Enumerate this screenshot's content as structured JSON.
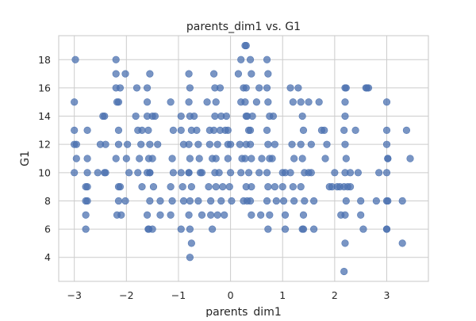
{
  "chart_data": {
    "type": "scatter",
    "title": "parents_dim1 vs. G1",
    "xlabel": "parents_dim1",
    "ylabel": "G1",
    "xlim": [
      -3.3,
      3.8
    ],
    "ylim": [
      2.3,
      19.7
    ],
    "xticks": [
      -3,
      -2,
      -1,
      0,
      1,
      2,
      3
    ],
    "yticks": [
      4,
      6,
      8,
      10,
      12,
      14,
      16,
      18
    ],
    "grid": true,
    "marker_color": "#4c72b0",
    "series": [
      {
        "x": [
          -2.98,
          -3.0,
          -3.0,
          -3.0,
          -2.96,
          -2.96,
          -3.0,
          -2.75,
          -2.75,
          -2.75,
          -2.75,
          -2.75,
          -2.78,
          -2.78,
          -2.78,
          -2.78,
          -2.55,
          -2.5,
          -2.45,
          -2.42,
          -2.4,
          -2.4,
          -2.42,
          -2.2,
          -2.2,
          -2.2,
          -2.15,
          -2.12,
          -2.18,
          -2.15,
          -2.2,
          -2.12,
          -2.15,
          -2.15,
          -2.18,
          -2.1,
          -2.15,
          -2.02,
          -1.98,
          -2.0,
          -2.02,
          -1.95,
          -1.8,
          -1.82,
          -1.78,
          -1.7,
          -1.72,
          -1.75,
          -1.78,
          -1.7,
          -1.6,
          -1.55,
          -1.6,
          -1.6,
          -1.58,
          -1.55,
          -1.57,
          -1.55,
          -1.6,
          -1.55,
          -1.6,
          -1.57,
          -1.58,
          -1.55,
          -1.5,
          -1.45,
          -1.4,
          -1.5,
          -1.48,
          -1.35,
          -1.35,
          -1.5,
          -1.15,
          -1.1,
          -1.12,
          -1.1,
          -1.15,
          -1.12,
          -1.15,
          -0.95,
          -0.95,
          -0.9,
          -0.95,
          -0.92,
          -0.9,
          -0.95,
          -0.8,
          -0.78,
          -0.8,
          -0.78,
          -0.75,
          -0.8,
          -0.78,
          -0.8,
          -0.75,
          -0.78,
          -0.8,
          -0.78,
          -0.75,
          -0.78,
          -0.8,
          -0.7,
          -0.65,
          -0.62,
          -0.6,
          -0.58,
          -0.55,
          -0.62,
          -0.55,
          -0.45,
          -0.4,
          -0.35,
          -0.42,
          -0.38,
          -0.38,
          -0.35,
          -0.4,
          -0.32,
          -0.3,
          -0.28,
          -0.3,
          -0.32,
          -0.25,
          -0.28,
          -0.3,
          -0.28,
          -0.25,
          -0.2,
          -0.18,
          -0.2,
          -0.22,
          -0.15,
          -0.18,
          -0.12,
          -0.1,
          -0.05,
          -0.08,
          0.0,
          -0.05,
          0.0,
          -0.02,
          0.02,
          -0.05,
          0.15,
          0.2,
          0.2,
          0.18,
          0.22,
          0.2,
          0.25,
          0.28,
          0.3,
          0.25,
          0.3,
          0.28,
          0.32,
          0.3,
          0.35,
          0.3,
          0.28,
          0.3,
          0.32,
          0.38,
          0.38,
          0.4,
          0.35,
          0.4,
          0.38,
          0.4,
          0.42,
          0.4,
          0.38,
          0.55,
          0.5,
          0.6,
          0.55,
          0.58,
          0.7,
          0.72,
          0.7,
          0.72,
          0.75,
          0.7,
          0.72,
          0.75,
          0.7,
          0.72,
          0.7,
          0.75,
          0.72,
          0.82,
          0.85,
          0.8,
          0.85,
          0.88,
          1.0,
          1.05,
          1.0,
          1.02,
          1.05,
          1.05,
          1.15,
          1.2,
          1.18,
          1.22,
          1.15,
          1.2,
          1.22,
          1.3,
          1.35,
          1.38,
          1.4,
          1.35,
          1.38,
          1.42,
          1.35,
          1.42,
          1.4,
          1.38,
          1.4,
          1.5,
          1.55,
          1.5,
          1.55,
          1.6,
          1.6,
          1.7,
          1.75,
          1.8,
          1.85,
          1.82,
          1.9,
          1.95,
          2.0,
          2.05,
          2.1,
          2.12,
          2.18,
          2.2,
          2.2,
          2.22,
          2.18,
          2.2,
          2.22,
          2.2,
          2.18,
          2.2,
          2.22,
          2.2,
          2.2,
          2.25,
          2.3,
          2.3,
          2.4,
          2.45,
          2.5,
          2.5,
          2.55,
          2.6,
          2.65,
          2.62,
          2.8,
          2.85,
          3.0,
          3.0,
          3.0,
          3.02,
          3.02,
          3.0,
          3.0,
          3.02,
          3.0,
          3.0,
          3.3,
          3.3,
          3.38,
          3.45
        ],
        "y": [
          18,
          15,
          13,
          12,
          12,
          11,
          10,
          13,
          11,
          10,
          9,
          8,
          8,
          7,
          6,
          9,
          10,
          12,
          14,
          14,
          12,
          10,
          10,
          18,
          17,
          16,
          15,
          16,
          15,
          12,
          11,
          9,
          9,
          8,
          7,
          7,
          13,
          17,
          12,
          11,
          8,
          10,
          16,
          14,
          13,
          13,
          12,
          11,
          10,
          9,
          16,
          17,
          15,
          14,
          13,
          12,
          11,
          10,
          10,
          8,
          7,
          6,
          6,
          10,
          14,
          14,
          12,
          11,
          9,
          8,
          7,
          6,
          15,
          13,
          11,
          10,
          9,
          8,
          7,
          14,
          13,
          12,
          10,
          9,
          8,
          6,
          17,
          16,
          15,
          14,
          13,
          12,
          11,
          10,
          9,
          8,
          7,
          6,
          5,
          4,
          10,
          14,
          13,
          12,
          11,
          10,
          10,
          8,
          7,
          15,
          13,
          11,
          9,
          8,
          7,
          6,
          12,
          17,
          16,
          15,
          14,
          13,
          12,
          11,
          10,
          9,
          7,
          16,
          14,
          13,
          10,
          9,
          8,
          7,
          13,
          13,
          14,
          12,
          11,
          10,
          9,
          8,
          12,
          17,
          18,
          15,
          12,
          11,
          10,
          8,
          19,
          19,
          16,
          16,
          15,
          14,
          14,
          13,
          12,
          11,
          9,
          8,
          18,
          12,
          11,
          10,
          9,
          8,
          7,
          14,
          17,
          13,
          16,
          15,
          11,
          10,
          7,
          18,
          17,
          16,
          15,
          14,
          13,
          12,
          11,
          10,
          9,
          8,
          7,
          6,
          14,
          12,
          11,
          9,
          8,
          10,
          10,
          9,
          8,
          7,
          6,
          16,
          15,
          12,
          11,
          10,
          9,
          8,
          16,
          15,
          14,
          13,
          12,
          11,
          10,
          9,
          8,
          7,
          6,
          6,
          15,
          12,
          10,
          10,
          8,
          6,
          15,
          13,
          13,
          12,
          11,
          9,
          9,
          10,
          9,
          9,
          7,
          3,
          5,
          7,
          8,
          9,
          10,
          11,
          12,
          13,
          14,
          16,
          15,
          16,
          9,
          9,
          10,
          13,
          10,
          8,
          7,
          6,
          16,
          16,
          16,
          8,
          10,
          15,
          13,
          12,
          11,
          11,
          10,
          8,
          8,
          6,
          6,
          8,
          5,
          13,
          11
        ]
      }
    ]
  }
}
